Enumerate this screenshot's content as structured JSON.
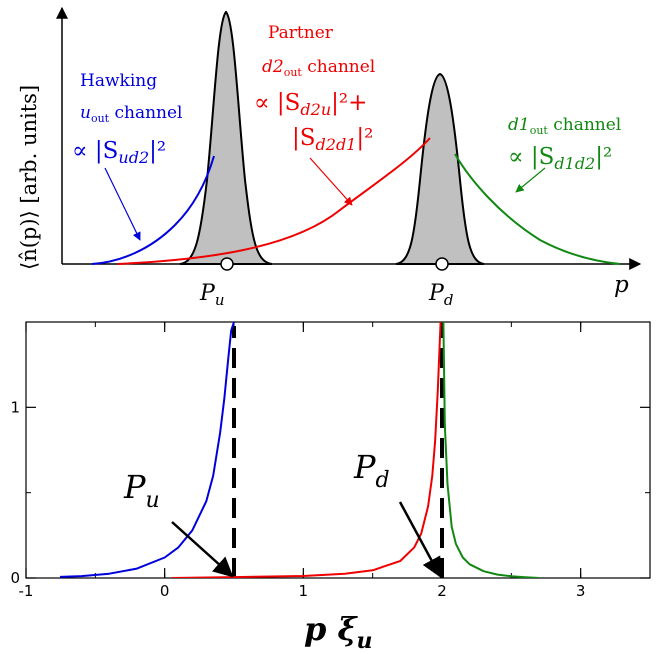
{
  "chart_data": [
    {
      "type": "area",
      "ylabel": "⟨n̂(p)⟩  [arb. units]",
      "xlabel": "p",
      "x_markers": [
        {
          "name": "P_u",
          "text": "P",
          "sub": "u"
        },
        {
          "name": "P_d",
          "text": "P",
          "sub": "d"
        }
      ],
      "annotations": {
        "hawking": {
          "line1": "Hawking",
          "line2_main": "u",
          "line2_sub": "out",
          "line2_rest": " channel",
          "line3": "∝ |S",
          "line3_sub": "ud2",
          "line3_rest": "|²",
          "color": "#0000dd"
        },
        "partner": {
          "line1": "Partner",
          "line2_main": "d2",
          "line2_sub": "out",
          "line2_rest": " channel",
          "line3": "∝ |S",
          "line3_sub": "d2u",
          "line3_rest": "|²+",
          "line4": "|S",
          "line4_sub": "d2d1",
          "line4_rest": "|²",
          "color": "#ee0000"
        },
        "d1": {
          "line1_main": "d1",
          "line1_sub": "out",
          "line1_rest": " channel",
          "line2": "∝ |S",
          "line2_sub": "d1d2",
          "line2_rest": "|²",
          "color": "#118811"
        }
      }
    },
    {
      "type": "line",
      "xlabel": "p ξ",
      "xlabel_sub": "u",
      "xlim": [
        -1,
        3.5
      ],
      "ylim": [
        0,
        1.5
      ],
      "x_ticks": [
        "-1",
        "0",
        "1",
        "2",
        "3"
      ],
      "y_ticks": [
        "0",
        "1"
      ],
      "series": [
        {
          "color": "#0000dd",
          "x": [
            -1.0,
            -0.8,
            -0.6,
            -0.4,
            -0.2,
            0.0,
            0.1,
            0.2,
            0.3,
            0.35,
            0.4,
            0.43,
            0.46,
            0.48,
            0.5
          ],
          "y": [
            0.002,
            0.005,
            0.011,
            0.025,
            0.055,
            0.12,
            0.18,
            0.28,
            0.45,
            0.6,
            0.85,
            1.05,
            1.3,
            1.45,
            1.5
          ]
        },
        {
          "color": "#ee0000",
          "x": [
            0.05,
            0.5,
            1.0,
            1.3,
            1.5,
            1.7,
            1.8,
            1.85,
            1.9,
            1.93,
            1.95,
            1.97,
            1.98,
            1.99
          ],
          "y": [
            0.0,
            0.005,
            0.012,
            0.025,
            0.045,
            0.1,
            0.18,
            0.26,
            0.42,
            0.6,
            0.8,
            1.1,
            1.3,
            1.5
          ]
        },
        {
          "color": "#118811",
          "x": [
            2.01,
            2.02,
            2.04,
            2.07,
            2.1,
            2.15,
            2.2,
            2.3,
            2.4,
            2.5,
            2.6,
            2.7
          ],
          "y": [
            1.5,
            0.9,
            0.55,
            0.3,
            0.2,
            0.12,
            0.08,
            0.04,
            0.02,
            0.01,
            0.004,
            0.0
          ]
        }
      ],
      "vlines": [
        {
          "name": "P_u",
          "x": 0.5,
          "style": "dashed"
        },
        {
          "name": "P_d",
          "x": 2.0,
          "style": "dashed"
        }
      ],
      "annotations": [
        {
          "text": "P",
          "sub": "u",
          "x": 0.5,
          "y": 0
        },
        {
          "text": "P",
          "sub": "d",
          "x": 2.0,
          "y": 0
        }
      ]
    }
  ]
}
